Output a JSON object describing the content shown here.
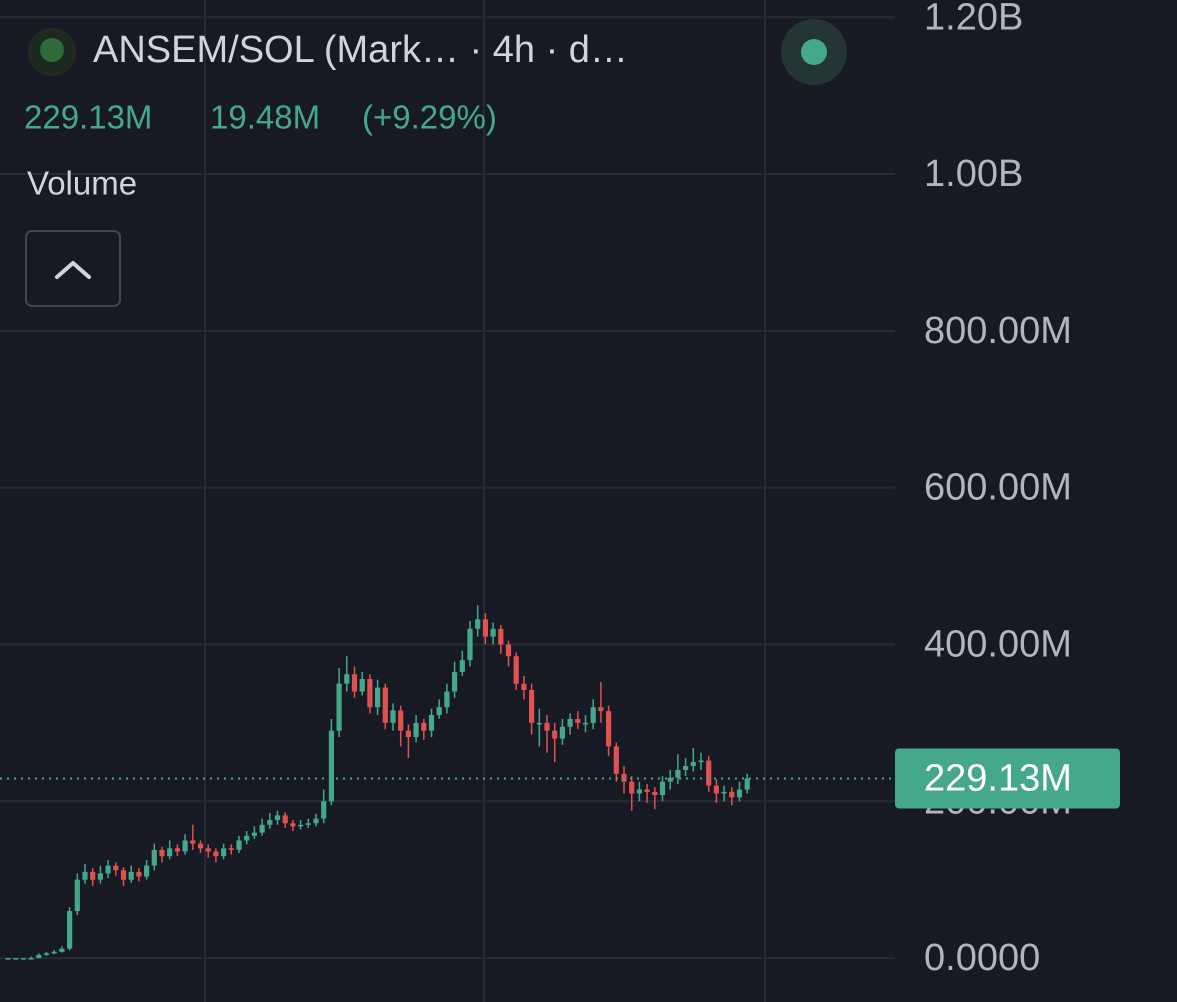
{
  "header": {
    "symbol": "ANSEM/SOL (Mark… · 4h · d…",
    "change": "19.48M",
    "change_pct": "(+9.29%)",
    "indicator": "Volume"
  },
  "chart_data": {
    "type": "candlestick",
    "up_color": "#45a88c",
    "down_color": "#e0514f",
    "grid": true,
    "ylim": [
      -56,
      1222
    ],
    "yticks": [
      {
        "value": 0,
        "label": "0.0000"
      },
      {
        "value": 200,
        "label": "200.00M"
      },
      {
        "value": 400,
        "label": "400.00M"
      },
      {
        "value": 600,
        "label": "600.00M"
      },
      {
        "value": 800,
        "label": "800.00M"
      },
      {
        "value": 1000,
        "label": "1.00B"
      },
      {
        "value": 1200,
        "label": "1.20B"
      }
    ],
    "last_price": {
      "value": 229.13,
      "label": "229.13M"
    },
    "open": [
      0,
      0,
      0,
      0,
      0,
      4,
      6,
      8,
      12,
      60,
      100,
      110,
      100,
      108,
      118,
      112,
      100,
      110,
      104,
      118,
      138,
      130,
      140,
      136,
      150,
      146,
      140,
      136,
      130,
      140,
      138,
      150,
      156,
      160,
      170,
      176,
      182,
      172,
      168,
      170,
      172,
      178,
      200,
      290,
      350,
      362,
      340,
      356,
      320,
      345,
      300,
      316,
      290,
      282,
      300,
      290,
      310,
      320,
      340,
      365,
      380,
      420,
      432,
      410,
      420,
      400,
      385,
      350,
      342,
      300,
      300,
      290,
      280,
      295,
      305,
      300,
      300,
      320,
      315,
      270,
      235,
      225,
      210,
      215,
      212,
      208,
      225,
      230,
      240,
      245,
      250,
      252,
      220,
      210,
      212,
      205,
      215
    ],
    "high": [
      0,
      0,
      0,
      2,
      6,
      8,
      10,
      15,
      65,
      108,
      120,
      115,
      118,
      125,
      122,
      116,
      118,
      115,
      125,
      146,
      142,
      150,
      145,
      158,
      170,
      150,
      145,
      140,
      146,
      145,
      156,
      162,
      168,
      178,
      185,
      188,
      186,
      176,
      176,
      178,
      184,
      215,
      305,
      370,
      385,
      372,
      365,
      362,
      355,
      350,
      325,
      322,
      298,
      310,
      305,
      318,
      330,
      350,
      378,
      392,
      430,
      450,
      440,
      428,
      425,
      405,
      390,
      360,
      350,
      318,
      310,
      300,
      305,
      312,
      315,
      310,
      330,
      352,
      322,
      275,
      245,
      232,
      225,
      222,
      218,
      232,
      240,
      260,
      255,
      268,
      262,
      258,
      228,
      220,
      218,
      225,
      235
    ],
    "low": [
      0,
      0,
      0,
      0,
      0,
      3,
      5,
      7,
      10,
      55,
      95,
      92,
      95,
      102,
      105,
      92,
      96,
      98,
      100,
      112,
      122,
      126,
      130,
      132,
      138,
      134,
      128,
      122,
      126,
      132,
      134,
      145,
      152,
      156,
      165,
      170,
      166,
      162,
      164,
      166,
      168,
      172,
      195,
      282,
      340,
      332,
      335,
      312,
      310,
      292,
      290,
      270,
      255,
      275,
      278,
      282,
      305,
      312,
      332,
      360,
      372,
      410,
      400,
      400,
      388,
      372,
      342,
      330,
      285,
      270,
      262,
      250,
      272,
      285,
      292,
      288,
      292,
      300,
      258,
      225,
      210,
      188,
      200,
      198,
      190,
      200,
      215,
      222,
      232,
      238,
      240,
      212,
      198,
      200,
      195,
      200,
      210
    ],
    "close": [
      0,
      0,
      0,
      0,
      4,
      6,
      8,
      12,
      60,
      100,
      110,
      100,
      108,
      118,
      112,
      100,
      110,
      104,
      118,
      138,
      130,
      140,
      136,
      150,
      146,
      140,
      136,
      130,
      140,
      138,
      150,
      156,
      160,
      170,
      176,
      182,
      172,
      168,
      170,
      172,
      178,
      200,
      290,
      350,
      362,
      340,
      356,
      320,
      345,
      300,
      316,
      290,
      282,
      300,
      290,
      310,
      320,
      340,
      365,
      380,
      420,
      432,
      410,
      420,
      400,
      385,
      350,
      342,
      300,
      300,
      290,
      280,
      295,
      305,
      300,
      300,
      320,
      315,
      270,
      235,
      225,
      210,
      215,
      212,
      208,
      225,
      230,
      240,
      245,
      250,
      252,
      220,
      210,
      212,
      205,
      215,
      229.13
    ]
  }
}
